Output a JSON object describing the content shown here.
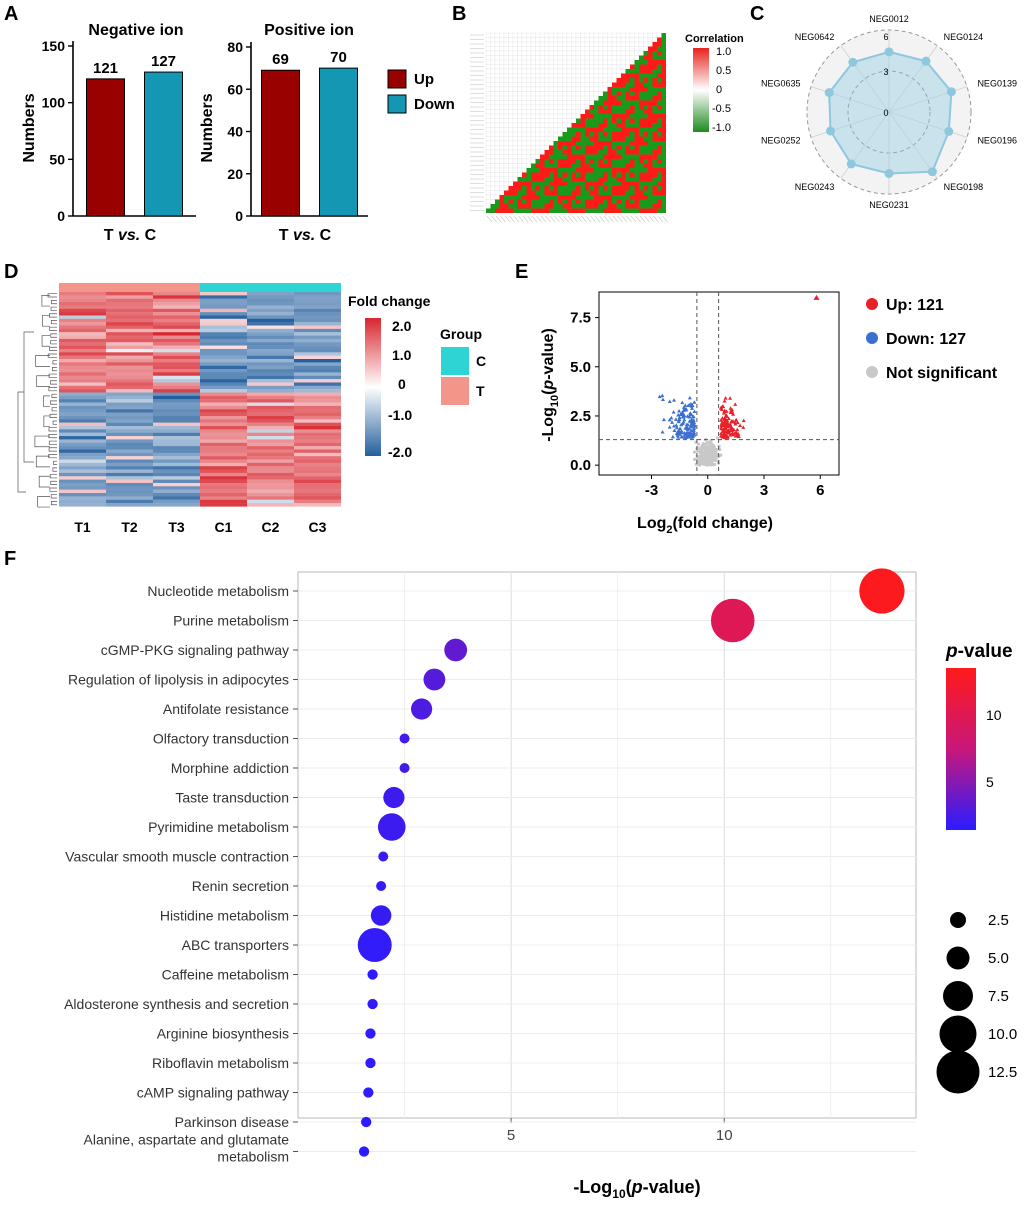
{
  "panels": {
    "A": "A",
    "B": "B",
    "C": "C",
    "D": "D",
    "E": "E",
    "F": "F"
  },
  "colors": {
    "up": "#990000",
    "down": "#1497b3",
    "vred": "#e8202a",
    "vblue": "#3b6fd0",
    "vgray": "#c8c8c8",
    "radar": "#a8d4e6",
    "heatHigh": "#d7262e",
    "heatLow": "#245f9e",
    "teal": "#2ed3d3",
    "salmon": "#f4958a",
    "corrPos": "#ff1a1a",
    "corrNeg": "#1a9a1a"
  },
  "chart_data": [
    {
      "id": "A1",
      "type": "bar",
      "title": "Negative ion",
      "categories": [
        "T vs. C"
      ],
      "xlabel_parts": [
        "T ",
        "vs.",
        " C"
      ],
      "ylabel": "Numbers",
      "series": [
        {
          "name": "Up",
          "values": [
            121
          ]
        },
        {
          "name": "Down",
          "values": [
            127
          ]
        }
      ],
      "ylim": [
        0,
        150
      ],
      "yticks": [
        0,
        50,
        100,
        150
      ]
    },
    {
      "id": "A2",
      "type": "bar",
      "title": "Positive ion",
      "categories": [
        "T vs. C"
      ],
      "xlabel_parts": [
        "T ",
        "vs.",
        " C"
      ],
      "ylabel": "Numbers",
      "series": [
        {
          "name": "Up",
          "values": [
            69
          ]
        },
        {
          "name": "Down",
          "values": [
            70
          ]
        }
      ],
      "ylim": [
        0,
        80
      ],
      "yticks": [
        0,
        20,
        40,
        60,
        80
      ],
      "legend": [
        "Up",
        "Down"
      ]
    },
    {
      "id": "B",
      "type": "heatmap",
      "title": "Correlation",
      "legend_ticks": [
        "1.0",
        "0.5",
        "0",
        "-0.5",
        "-1.0"
      ],
      "n": 40,
      "values": "binary correlation matrix (lower triangle), +1 (red) / -1 (green)"
    },
    {
      "id": "C",
      "type": "radar",
      "axes": [
        "NEG0012",
        "NEG0124",
        "NEG0139",
        "NEG0196",
        "NEG0198",
        "NEG0231",
        "NEG0243",
        "NEG0252",
        "NEG0635",
        "NEG0642"
      ],
      "values": [
        4.4,
        4.6,
        4.8,
        4.6,
        5.4,
        4.5,
        4.7,
        4.5,
        4.6,
        4.5
      ],
      "rlim": [
        0,
        6
      ],
      "rticks": [
        "0",
        "3",
        "6"
      ]
    },
    {
      "id": "D",
      "type": "heatmap",
      "title": "Fold change",
      "columns": [
        "T1",
        "T2",
        "T3",
        "C1",
        "C2",
        "C3"
      ],
      "groups": [
        "T",
        "T",
        "T",
        "C",
        "C",
        "C"
      ],
      "group_title": "Group",
      "group_legend": [
        "C",
        "T"
      ],
      "legend_ticks": [
        "2.0",
        "1.0",
        "0",
        "-1.0",
        "-2.0"
      ],
      "range": [
        -2.0,
        2.0
      ]
    },
    {
      "id": "E",
      "type": "scatter",
      "xlabel_parts": [
        "Log",
        "2",
        "(fold change)"
      ],
      "ylabel_parts": [
        "-Log",
        "10",
        "(",
        "p",
        "-value)"
      ],
      "xlim": [
        -5.8,
        7.0
      ],
      "ylim": [
        -0.5,
        8.8
      ],
      "xticks": [
        "-3",
        "0",
        "3",
        "6"
      ],
      "yticks": [
        "0.0",
        "2.5",
        "5.0",
        "7.5"
      ],
      "legend": [
        "Up: 121",
        "Down: 127",
        "Not significant"
      ],
      "thresholds": {
        "fc": [
          -0.58,
          0.58
        ],
        "p": 1.3
      },
      "counts": {
        "up": 121,
        "down": 127
      }
    },
    {
      "id": "F",
      "type": "scatter",
      "xlabel_parts": [
        "-Log",
        "10",
        "(",
        "p",
        "-value)"
      ],
      "xticks": [
        "5",
        "10"
      ],
      "xlim": [
        0,
        14.5
      ],
      "pathways": [
        {
          "name": "Nucleotide metabolism",
          "x": 13.7,
          "size": 12.5
        },
        {
          "name": "Purine metabolism",
          "x": 10.2,
          "size": 12.0
        },
        {
          "name": "cGMP-PKG signaling pathway",
          "x": 3.7,
          "size": 5.5
        },
        {
          "name": "Regulation of lipolysis in adipocytes",
          "x": 3.2,
          "size": 5.2
        },
        {
          "name": "Antifolate resistance",
          "x": 2.9,
          "size": 5.0
        },
        {
          "name": "Olfactory transduction",
          "x": 2.5,
          "size": 1.5
        },
        {
          "name": "Morphine addiction",
          "x": 2.5,
          "size": 1.5
        },
        {
          "name": "Taste transduction",
          "x": 2.25,
          "size": 5.0
        },
        {
          "name": "Pyrimidine metabolism",
          "x": 2.2,
          "size": 7.0
        },
        {
          "name": "Vascular smooth muscle contraction",
          "x": 2.0,
          "size": 1.5
        },
        {
          "name": "Renin secretion",
          "x": 1.95,
          "size": 1.5
        },
        {
          "name": "Histidine metabolism",
          "x": 1.95,
          "size": 4.8
        },
        {
          "name": "ABC transporters",
          "x": 1.8,
          "size": 9.0
        },
        {
          "name": "Caffeine metabolism",
          "x": 1.75,
          "size": 1.6
        },
        {
          "name": "Aldosterone synthesis and secretion",
          "x": 1.75,
          "size": 1.6
        },
        {
          "name": "Arginine biosynthesis",
          "x": 1.7,
          "size": 1.6
        },
        {
          "name": "Riboflavin metabolism",
          "x": 1.7,
          "size": 1.6
        },
        {
          "name": "cAMP signaling pathway",
          "x": 1.65,
          "size": 1.6
        },
        {
          "name": "Parkinson disease",
          "x": 1.6,
          "size": 1.6
        },
        {
          "name": "Alanine, aspartate and glutamate metabolism",
          "x": 1.55,
          "size": 1.6
        }
      ],
      "color_legend_title_parts": [
        "p",
        "-value"
      ],
      "color_legend_ticks": [
        "10",
        "5"
      ],
      "size_legend": [
        "2.5",
        "5.0",
        "7.5",
        "10.0",
        "12.5"
      ]
    }
  ]
}
